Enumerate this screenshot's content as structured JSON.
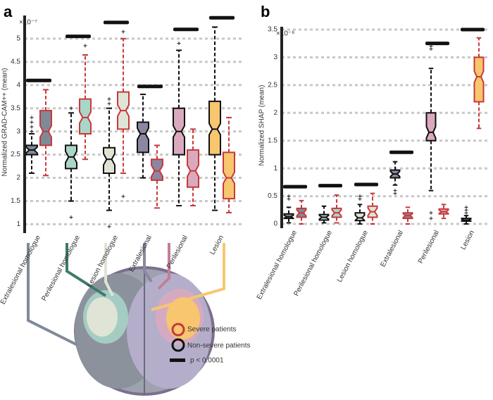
{
  "legend": {
    "severe": "Severe patients",
    "non_severe": "Non-severe patients",
    "significance": "p < 0.0001"
  },
  "chart_data": [
    {
      "type": "box",
      "panel": "a",
      "scale_label": "×10⁻⁷",
      "ylabel": "Normalized GRAD-CAM++ (mean)",
      "categories": [
        "Extralesional homologue",
        "Perilesional homologue",
        "Lesion homologue",
        "Extralesional",
        "Perilesional",
        "Lesion"
      ],
      "category_colors": [
        "#7f8a99",
        "#a9d6c9",
        "#dfe4d6",
        "#8c86a2",
        "#dba9be",
        "#f7c66e"
      ],
      "ylim": [
        0.9,
        5.5
      ],
      "yticks": [
        1,
        1.5,
        2,
        2.5,
        3,
        3.5,
        4,
        4.5,
        5
      ],
      "grid": true,
      "series": [
        {
          "stroke": "#111111",
          "boxes": [
            {
              "min": 2.1,
              "q1": 2.5,
              "median": 2.6,
              "q3": 2.7,
              "max": 2.95,
              "outliers": [
                3.0,
                3.1,
                3.2,
                3.3
              ]
            },
            {
              "min": 1.5,
              "q1": 2.2,
              "median": 2.45,
              "q3": 2.7,
              "max": 3.4,
              "outliers": [
                1.15,
                3.5
              ]
            },
            {
              "min": 1.3,
              "q1": 2.1,
              "median": 2.4,
              "q3": 2.65,
              "max": 3.5,
              "outliers": [
                0.95,
                3.6,
                3.7
              ]
            },
            {
              "min": 2.0,
              "q1": 2.55,
              "median": 2.95,
              "q3": 3.2,
              "max": 3.8,
              "outliers": []
            },
            {
              "min": 1.4,
              "q1": 2.5,
              "median": 3.0,
              "q3": 3.5,
              "max": 4.75,
              "outliers": [
                4.9
              ]
            },
            {
              "min": 1.3,
              "q1": 2.5,
              "median": 3.05,
              "q3": 3.65,
              "max": 5.25,
              "outliers": []
            }
          ]
        },
        {
          "stroke": "#c8393b",
          "boxes": [
            {
              "min": 2.05,
              "q1": 2.7,
              "median": 3.0,
              "q3": 3.45,
              "max": 3.9,
              "outliers": []
            },
            {
              "min": 2.4,
              "q1": 2.95,
              "median": 3.3,
              "q3": 3.7,
              "max": 4.65,
              "outliers": [
                4.85
              ]
            },
            {
              "min": 2.1,
              "q1": 3.05,
              "median": 3.45,
              "q3": 3.85,
              "max": 5.0,
              "outliers": [
                1.6,
                5.15
              ]
            },
            {
              "min": 1.35,
              "q1": 1.95,
              "median": 2.15,
              "q3": 2.4,
              "max": 2.7,
              "outliers": []
            },
            {
              "min": 1.4,
              "q1": 1.8,
              "median": 2.15,
              "q3": 2.6,
              "max": 3.05,
              "outliers": []
            },
            {
              "min": 1.25,
              "q1": 1.55,
              "median": 2.0,
              "q3": 2.55,
              "max": 3.3,
              "outliers": []
            }
          ]
        }
      ],
      "significance": [
        4.1,
        5.05,
        5.35,
        3.97,
        5.2,
        5.45
      ]
    },
    {
      "type": "box",
      "panel": "b",
      "scale_label": "×10⁻⁶",
      "ylabel": "Normalized SHAP (mean)",
      "categories": [
        "Extralesional homologue",
        "Perilesional homologue",
        "Lesion homologue",
        "Extralesional",
        "Perilesional",
        "Lesion"
      ],
      "category_colors": [
        "#7f8a99",
        "#a9d6c9",
        "#dfe4d6",
        "#8c86a2",
        "#dba9be",
        "#f7c66e"
      ],
      "ylim": [
        0,
        3.55
      ],
      "yticks": [
        0,
        0.5,
        1,
        1.5,
        2,
        2.5,
        3,
        3.5
      ],
      "grid": true,
      "series": [
        {
          "stroke": "#111111",
          "boxes": [
            {
              "min": 0.02,
              "q1": 0.1,
              "median": 0.13,
              "q3": 0.18,
              "max": 0.3,
              "outliers": [
                0.45,
                0.5
              ]
            },
            {
              "min": 0.02,
              "q1": 0.07,
              "median": 0.12,
              "q3": 0.17,
              "max": 0.32,
              "outliers": []
            },
            {
              "min": 0.0,
              "q1": 0.06,
              "median": 0.11,
              "q3": 0.2,
              "max": 0.35,
              "outliers": [
                0.45,
                0.5
              ]
            },
            {
              "min": 0.7,
              "q1": 0.83,
              "median": 0.9,
              "q3": 0.97,
              "max": 1.12,
              "outliers": [
                0.55,
                0.6
              ]
            },
            {
              "min": 0.6,
              "q1": 1.5,
              "median": 1.65,
              "q3": 2.0,
              "max": 2.8,
              "outliers": [
                0.1,
                0.2,
                3.15,
                3.2
              ]
            },
            {
              "min": 0.0,
              "q1": 0.05,
              "median": 0.07,
              "q3": 0.1,
              "max": 0.15,
              "outliers": [
                0.2,
                0.25,
                0.3
              ]
            }
          ]
        },
        {
          "stroke": "#c8393b",
          "boxes": [
            {
              "min": 0.0,
              "q1": 0.12,
              "median": 0.2,
              "q3": 0.28,
              "max": 0.42,
              "outliers": []
            },
            {
              "min": 0.02,
              "q1": 0.12,
              "median": 0.2,
              "q3": 0.28,
              "max": 0.52,
              "outliers": []
            },
            {
              "min": 0.0,
              "q1": 0.12,
              "median": 0.22,
              "q3": 0.32,
              "max": 0.55,
              "outliers": []
            },
            {
              "min": 0.0,
              "q1": 0.1,
              "median": 0.15,
              "q3": 0.2,
              "max": 0.3,
              "outliers": []
            },
            {
              "min": 0.1,
              "q1": 0.18,
              "median": 0.22,
              "q3": 0.27,
              "max": 0.35,
              "outliers": []
            },
            {
              "min": 1.72,
              "q1": 2.2,
              "median": 2.65,
              "q3": 3.0,
              "max": 3.35,
              "outliers": []
            }
          ]
        }
      ],
      "significance": [
        0.67,
        0.69,
        0.71,
        1.29,
        3.25,
        3.5
      ]
    }
  ]
}
